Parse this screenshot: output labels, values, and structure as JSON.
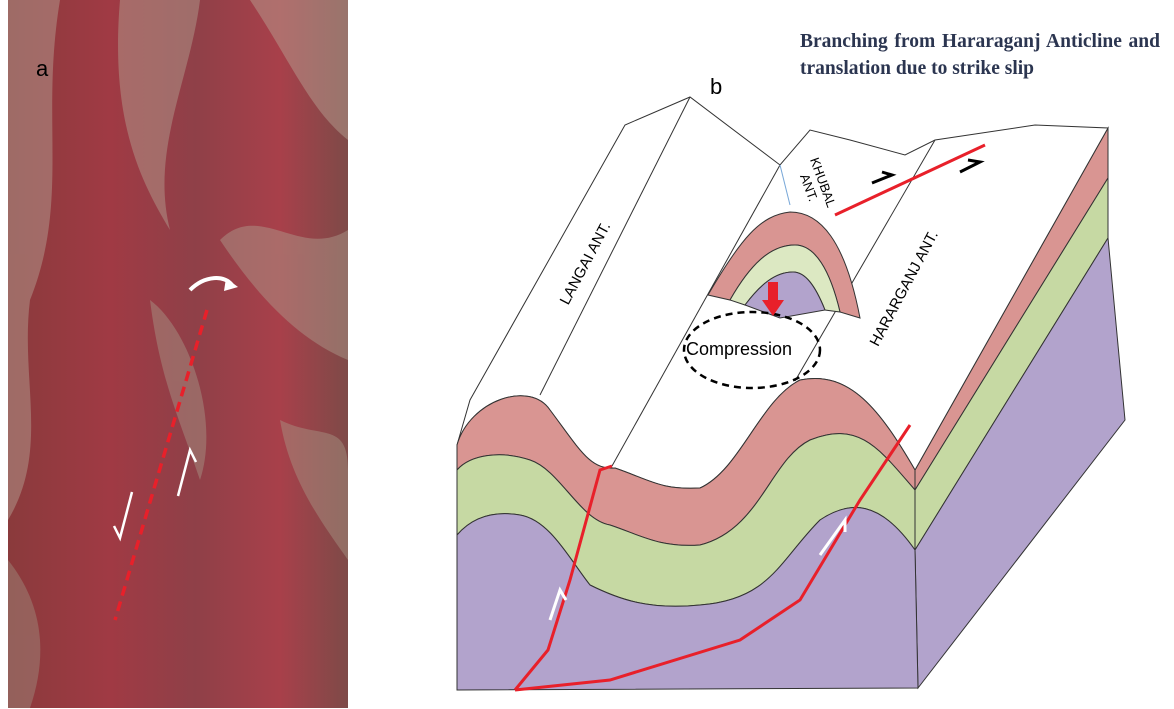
{
  "panels": [
    {
      "label": "a"
    },
    {
      "label": "b",
      "caption": "Branching from Hararaganj Anticline and translation due to strike slip",
      "labels": [
        "LANGAI ANT.",
        [
          "KHUBAL",
          "ANT."
        ],
        "HARARGANJ ANT."
      ],
      "compression": "Compression"
    }
  ]
}
